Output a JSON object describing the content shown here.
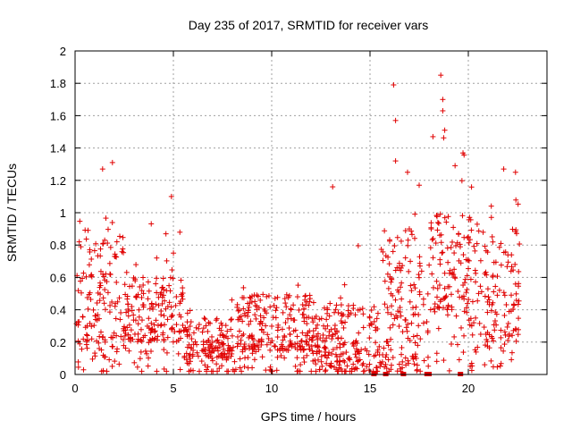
{
  "chart_data": {
    "type": "scatter",
    "title": "Day 235 of 2017, SRMTID for receiver vars",
    "xlabel": "GPS time / hours",
    "ylabel": "SRMTID / TECUs",
    "xlim": [
      0,
      24
    ],
    "ylim": [
      0,
      2
    ],
    "xticks": [
      0,
      5,
      10,
      15,
      20
    ],
    "xtick_labels": [
      "0",
      "5",
      "10",
      "15",
      "20"
    ],
    "yticks": [
      0,
      0.2,
      0.4,
      0.6,
      0.8,
      1,
      1.2,
      1.4,
      1.6,
      1.8,
      2
    ],
    "ytick_labels": [
      "0",
      "0.2",
      "0.4",
      "0.6",
      "0.8",
      "1",
      "1.2",
      "1.4",
      "1.6",
      "1.8",
      "2"
    ],
    "grid": true,
    "marker": "plus",
    "color": "#e00000",
    "series_summary": [
      {
        "x_range": [
          0,
          2.5
        ],
        "y_typical": [
          0.2,
          0.9
        ],
        "y_max": 1.31
      },
      {
        "x_range": [
          2.5,
          5.5
        ],
        "y_typical": [
          0.2,
          0.6
        ],
        "y_max": 1.1
      },
      {
        "x_range": [
          5.5,
          8
        ],
        "y_typical": [
          0.1,
          0.35
        ],
        "y_max": 0.65
      },
      {
        "x_range": [
          8,
          12
        ],
        "y_typical": [
          0.15,
          0.5
        ],
        "y_max": 0.6
      },
      {
        "x_range": [
          12,
          15.5
        ],
        "y_typical": [
          0.05,
          0.45
        ],
        "y_max": 1.16
      },
      {
        "x_range": [
          15.5,
          18
        ],
        "y_typical": [
          0.1,
          0.9
        ],
        "y_max": 1.79
      },
      {
        "x_range": [
          18,
          20
        ],
        "y_typical": [
          0.4,
          1.0
        ],
        "y_max": 1.85
      },
      {
        "x_range": [
          20,
          22.6
        ],
        "y_typical": [
          0.2,
          0.9
        ],
        "y_max": 1.27
      }
    ],
    "highlighted_points": [
      {
        "x": 1.4,
        "y": 1.27
      },
      {
        "x": 1.9,
        "y": 1.31
      },
      {
        "x": 4.9,
        "y": 1.1
      },
      {
        "x": 13.1,
        "y": 1.16
      },
      {
        "x": 16.2,
        "y": 1.79
      },
      {
        "x": 16.3,
        "y": 1.57
      },
      {
        "x": 16.3,
        "y": 1.32
      },
      {
        "x": 17.5,
        "y": 1.17
      },
      {
        "x": 18.2,
        "y": 1.47
      },
      {
        "x": 18.6,
        "y": 1.85
      },
      {
        "x": 18.7,
        "y": 1.7
      },
      {
        "x": 18.7,
        "y": 1.63
      },
      {
        "x": 18.8,
        "y": 1.51
      },
      {
        "x": 21.8,
        "y": 1.27
      },
      {
        "x": 22.4,
        "y": 1.25
      }
    ],
    "gap_markers_x": [
      15.2,
      15.8,
      16.7,
      17.9,
      18.0,
      19.6
    ]
  }
}
